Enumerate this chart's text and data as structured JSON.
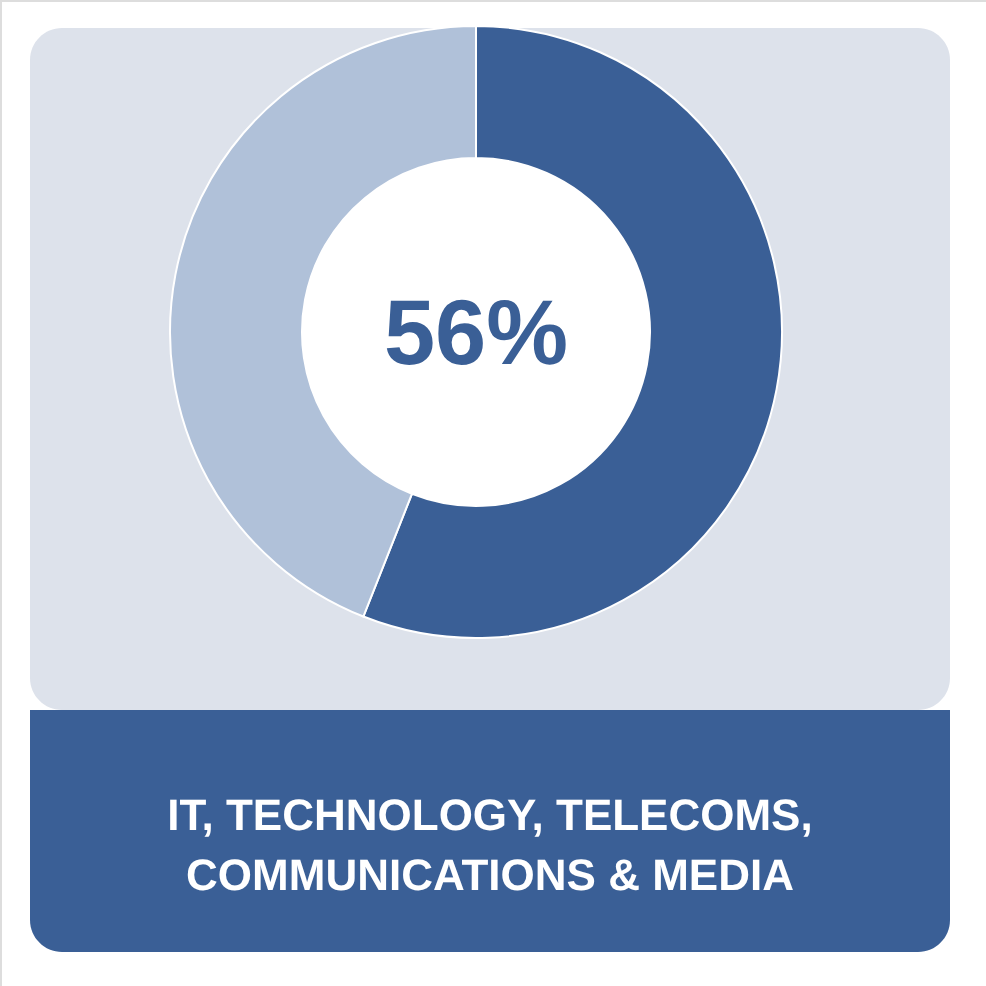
{
  "chart_data": {
    "type": "donut",
    "title": "IT, TECHNOLOGY, TELECOMS, COMMUNICATIONS & MEDIA",
    "categories": [
      null,
      null
    ],
    "values": [
      56,
      44
    ],
    "colors": [
      "#3a5f96",
      "#b0c1d9"
    ],
    "value_labels": [
      "56%",
      null
    ]
  }
}
